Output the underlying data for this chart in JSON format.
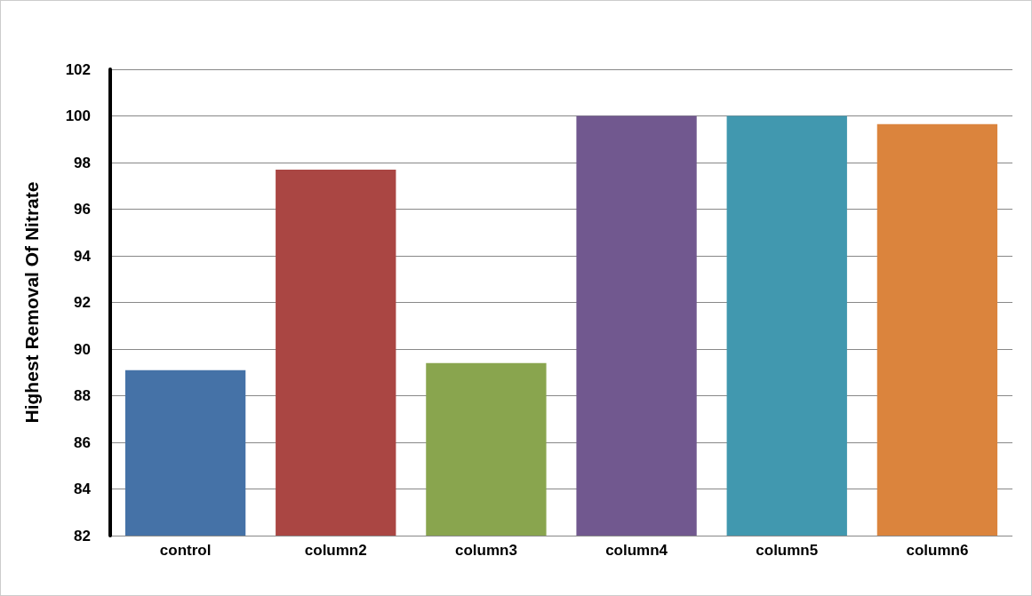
{
  "chart_data": {
    "type": "bar",
    "ylabel": "Highest Removal Of Nitrate",
    "categories": [
      "control",
      "column2",
      "column3",
      "column4",
      "column5",
      "column6"
    ],
    "values": [
      89.1,
      97.7,
      89.4,
      100,
      100,
      99.65
    ],
    "colors": [
      "#4572a7",
      "#aa4643",
      "#89a54e",
      "#71588f",
      "#4198af",
      "#db843d"
    ],
    "ylim": [
      82,
      102
    ],
    "yticks": [
      82,
      84,
      86,
      88,
      90,
      92,
      94,
      96,
      98,
      100,
      102
    ],
    "grid": "y"
  }
}
